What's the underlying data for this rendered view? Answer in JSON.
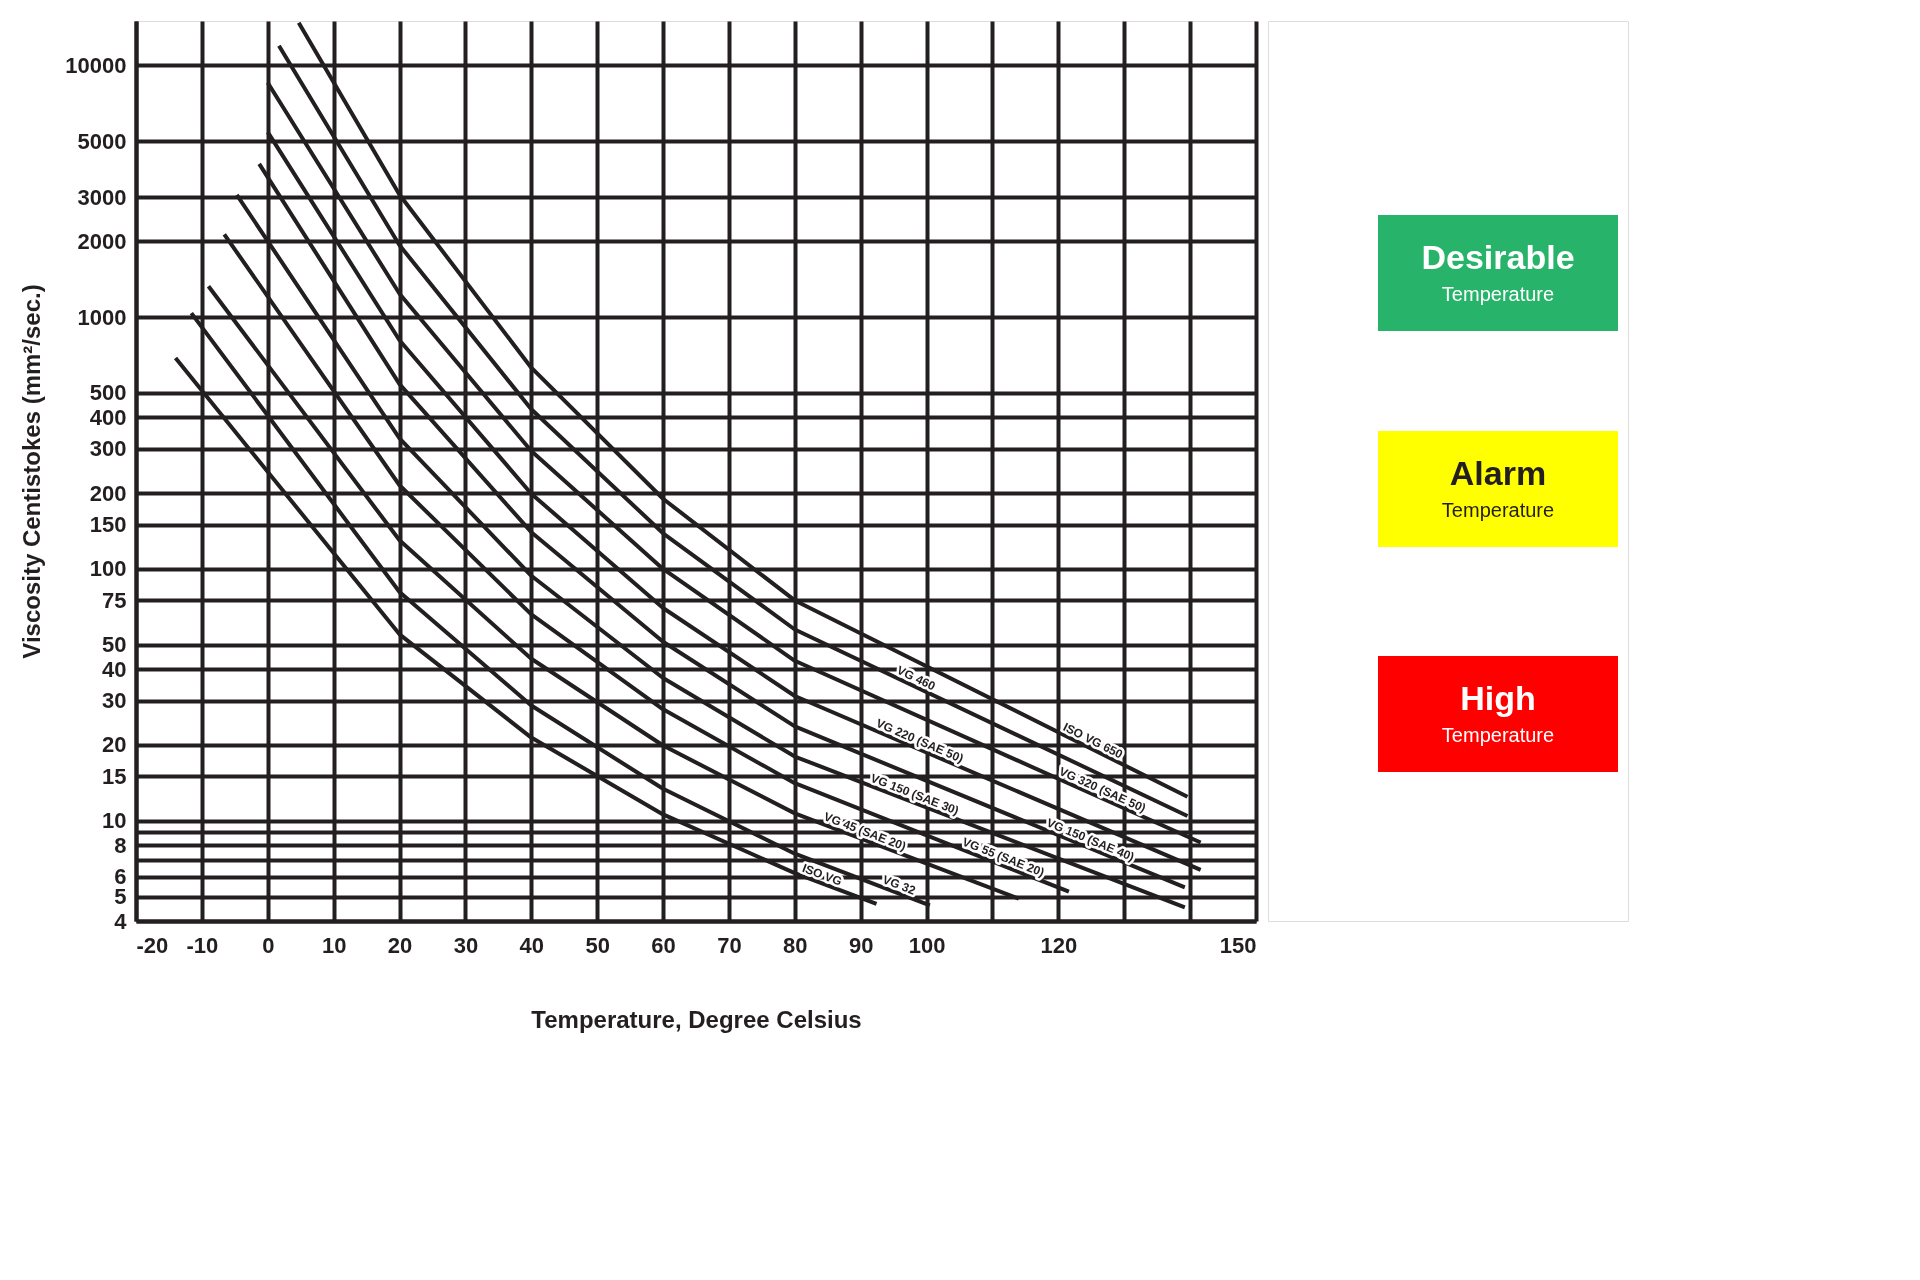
{
  "chart_data": {
    "type": "line",
    "xlabel": "Temperature, Degree Celsius",
    "ylabel": "Viscosity Centistokes (mm²/sec.)",
    "xlim": [
      -20,
      150
    ],
    "xticks": [
      -20,
      -10,
      0,
      10,
      20,
      30,
      40,
      50,
      60,
      70,
      80,
      90,
      100,
      {
        "value": 110,
        "label": null
      },
      120,
      {
        "value": 130,
        "label": null
      },
      {
        "value": 140,
        "label": null
      },
      150
    ],
    "ylim": [
      4,
      15000
    ],
    "yticks": [
      4,
      5,
      6,
      {
        "value": 7,
        "label": null
      },
      8,
      {
        "value": 9,
        "label": null
      },
      10,
      15,
      20,
      30,
      40,
      50,
      75,
      100,
      150,
      200,
      300,
      400,
      500,
      1000,
      2000,
      3000,
      5000,
      10000
    ],
    "log": "y",
    "grid": true,
    "legend": false,
    "marker": "none",
    "line_style": "solid",
    "series": [
      {
        "name": "ISO VG",
        "color": "#231f20",
        "x": [
          -14,
          20,
          40,
          60,
          80,
          92.4
        ],
        "values": [
          688,
          55,
          21.4,
          10.6,
          6.2,
          4.68
        ]
      },
      {
        "name": "VG 32",
        "color": "#231f20",
        "x": [
          -11.6,
          20,
          40,
          60,
          80,
          100.5
        ],
        "values": [
          1038,
          81,
          28.7,
          13.4,
          7.4,
          4.61
        ]
      },
      {
        "name": "VG 45 (SAE 20)",
        "color": "#231f20",
        "x": [
          -9,
          20,
          40,
          60,
          80,
          114
        ],
        "values": [
          1327,
          130,
          44,
          19.9,
          10.7,
          4.91
        ]
      },
      {
        "name": "VG 55 (SAE 20)",
        "color": "#231f20",
        "x": [
          -6.6,
          20,
          40,
          60,
          80,
          121.6
        ],
        "values": [
          2133,
          215,
          66,
          27.7,
          14.1,
          5.23
        ]
      },
      {
        "name": "VG 150 (SAE 30)",
        "color": "#231f20",
        "x": [
          -4.7,
          20,
          40,
          60,
          80,
          139.2
        ],
        "values": [
          3062,
          330,
          94,
          36.9,
          18,
          4.53
        ]
      },
      {
        "name": "VG 150 (SAE 40)",
        "color": "#231f20",
        "x": [
          -1.3,
          20,
          40,
          60,
          80,
          139.2
        ],
        "values": [
          4064,
          542,
          140,
          51.4,
          23.7,
          5.44
        ]
      },
      {
        "name": "VG 220 (SAE 50)",
        "color": "#231f20",
        "x": [
          0,
          20,
          40,
          60,
          80,
          141.6
        ],
        "values": [
          5433,
          810,
          199,
          70,
          31.3,
          6.38
        ]
      },
      {
        "name": "VG 320 (SAE 50)",
        "color": "#231f20",
        "x": [
          0,
          20,
          40,
          60,
          80,
          141.6
        ],
        "values": [
          8531,
          1238,
          294,
          100,
          43.2,
          8.2
        ]
      },
      {
        "name": "VG 460",
        "color": "#231f20",
        "x": [
          1.7,
          20,
          40,
          60,
          80,
          139.6
        ],
        "values": [
          11970,
          1931,
          431,
          138.6,
          57.5,
          10.45
        ]
      },
      {
        "name": "ISO VG 650",
        "color": "#231f20",
        "x": [
          4.7,
          20,
          40,
          60,
          80,
          139.6
        ],
        "values": [
          14757,
          3061,
          630,
          190,
          75,
          12.45
        ]
      }
    ],
    "annotations": [
      "Desirable",
      "Temperature",
      "Alarm",
      "Temperature",
      "High",
      "Temperature"
    ]
  }
}
